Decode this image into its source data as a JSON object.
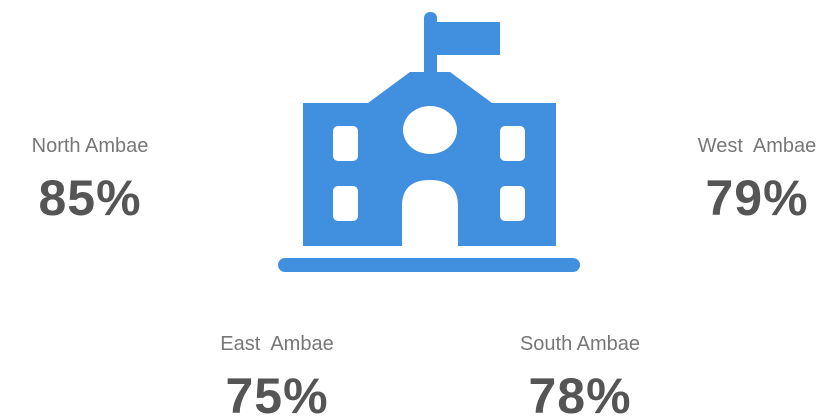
{
  "regions": [
    {
      "name": "North Ambae",
      "value": "85%"
    },
    {
      "name": "West  Ambae",
      "value": "79%"
    },
    {
      "name": "East  Ambae",
      "value": "75%"
    },
    {
      "name": "South Ambae",
      "value": "78%"
    }
  ]
}
